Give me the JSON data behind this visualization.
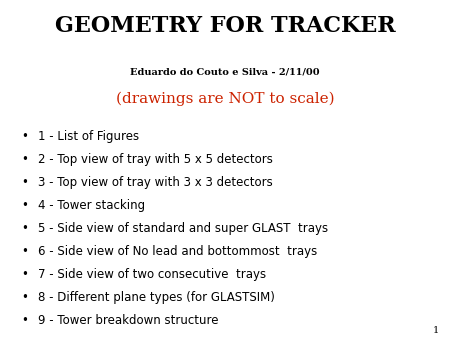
{
  "title": "GEOMETRY FOR TRACKER",
  "subtitle": "Eduardo do Couto e Silva - 2/11/00",
  "subtitle2": "(drawings are NOT to scale)",
  "subtitle2_color": "#cc2200",
  "background_color": "#ffffff",
  "title_fontsize": 16,
  "subtitle_fontsize": 7,
  "subtitle2_fontsize": 11,
  "bullet_fontsize": 8.5,
  "page_number": "1",
  "page_number_fontsize": 7,
  "bullets": [
    "1 - List of Figures",
    "2 - Top view of tray with 5 x 5 detectors",
    "3 - Top view of tray with 3 x 3 detectors",
    "4 - Tower stacking",
    "5 - Side view of standard and super GLAST  trays",
    "6 - Side view of No lead and bottommost  trays",
    "7 - Side view of two consecutive  trays",
    "8 - Different plane types (for GLASTSIM)",
    "9 - Tower breakdown structure"
  ]
}
